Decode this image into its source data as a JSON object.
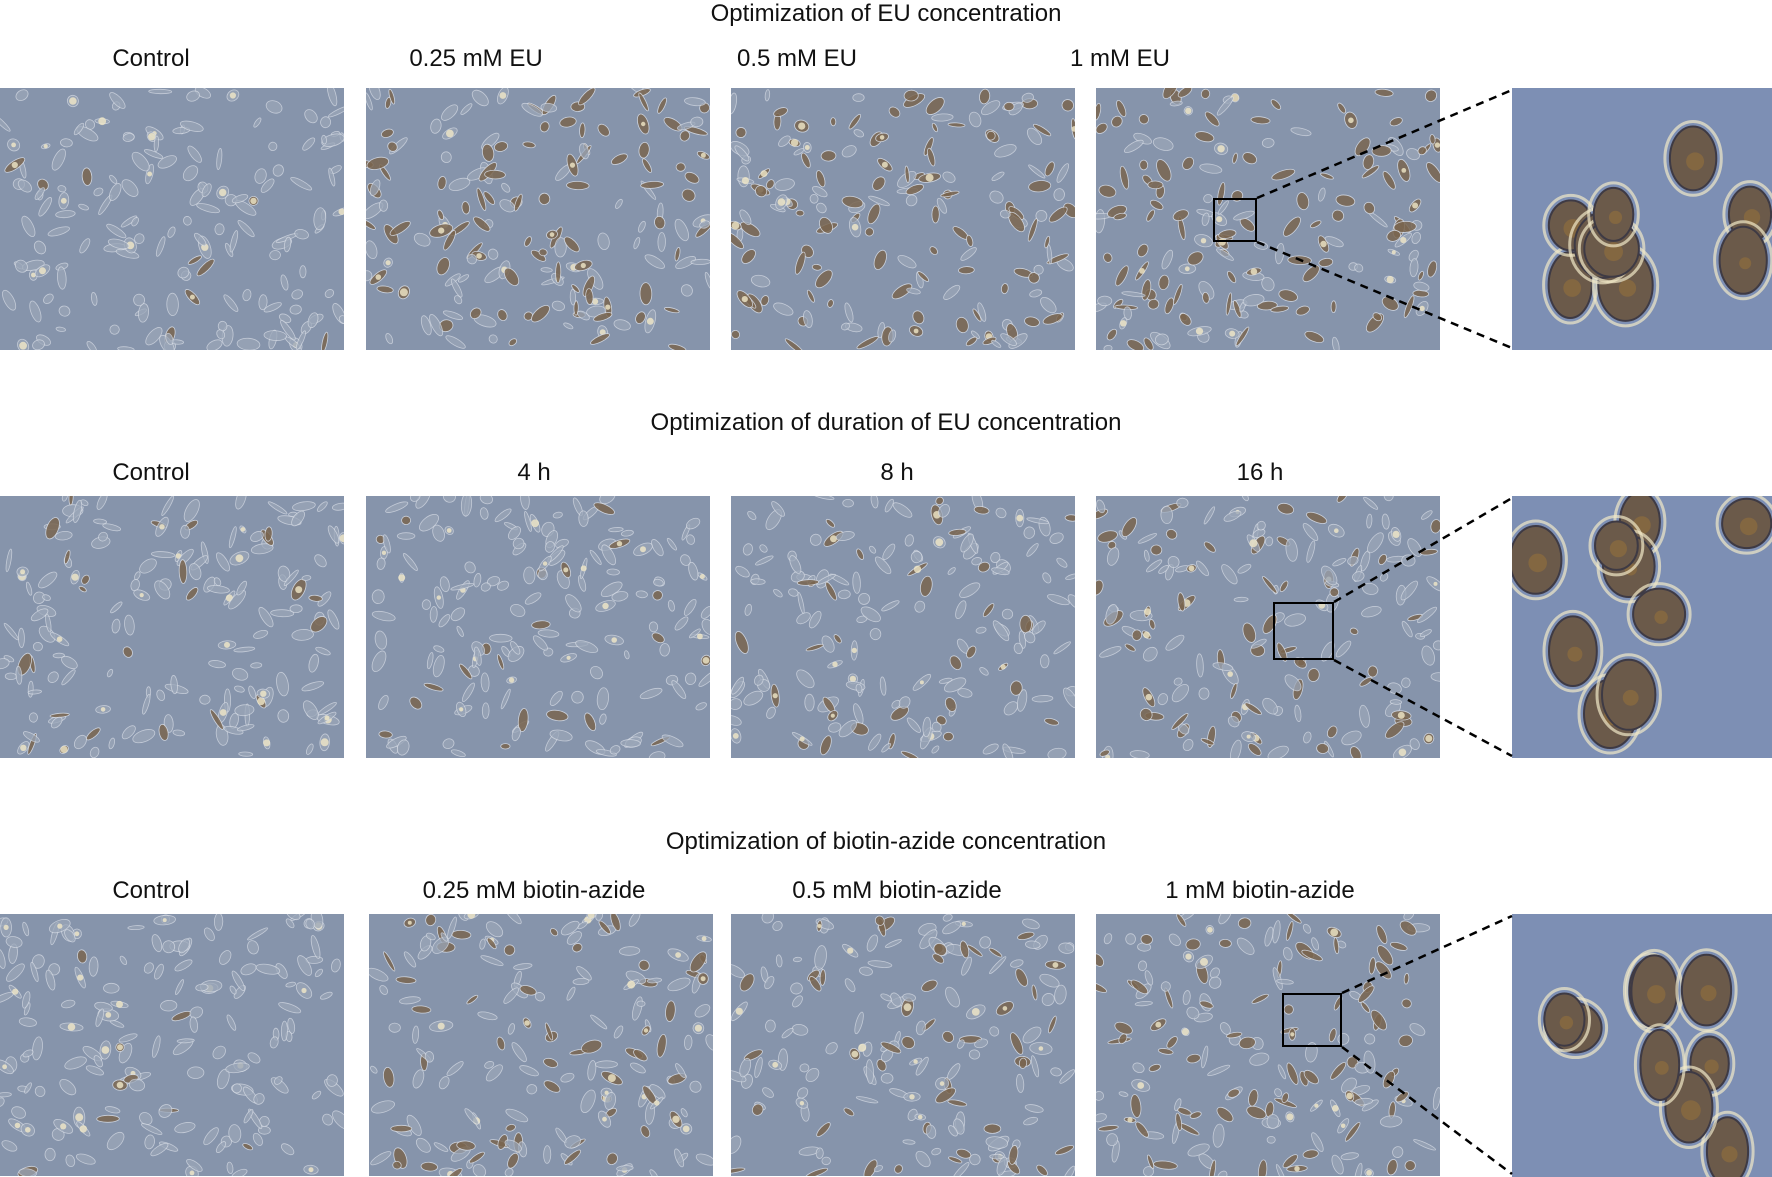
{
  "rows": [
    {
      "title": "Optimization of EU concentration",
      "labels": [
        "Control",
        "0.25 mM EU",
        "0.5 mM EU",
        "1 mM EU"
      ],
      "stain_level": [
        0.05,
        0.55,
        0.6,
        0.65
      ]
    },
    {
      "title": "Optimization of duration of EU concentration",
      "labels": [
        "Control",
        "4 h",
        "8 h",
        "16 h"
      ],
      "stain_level": [
        0.08,
        0.12,
        0.25,
        0.35
      ]
    },
    {
      "title": "Optimization of biotin-azide concentration",
      "labels": [
        "Control",
        "0.25 mM biotin-azide",
        "0.5 mM biotin-azide",
        "1 mM biotin-azide"
      ],
      "stain_level": [
        0.05,
        0.4,
        0.35,
        0.5
      ]
    }
  ],
  "colors": {
    "background": "#8694ab",
    "cell_fill": "#9aa6b8",
    "cell_edge": "#d8dde6",
    "stained_cell": "#7a6650",
    "halo": "#f1e8c8"
  }
}
